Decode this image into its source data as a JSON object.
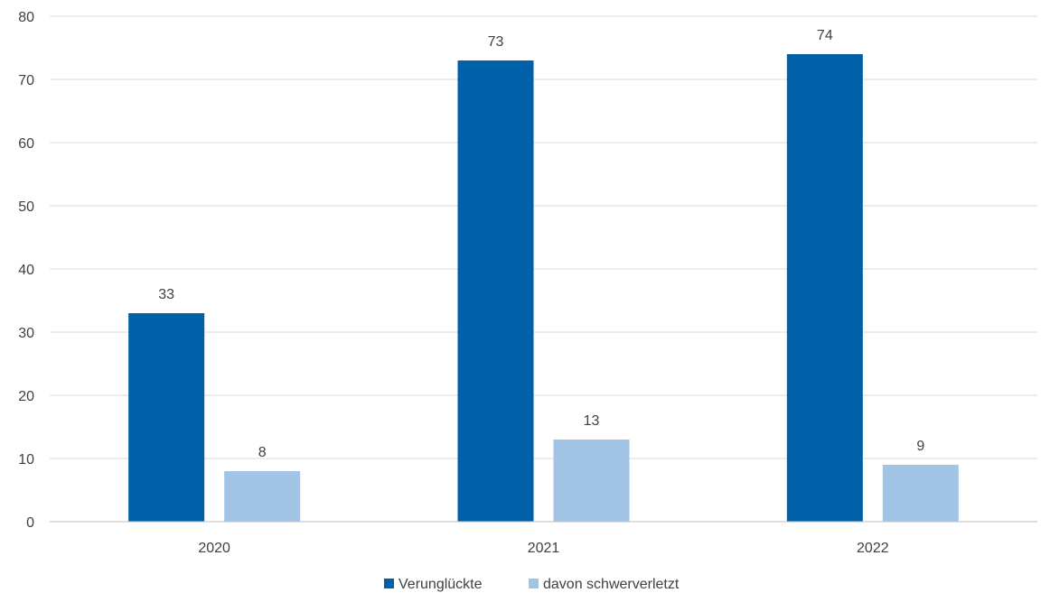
{
  "chart_data": {
    "type": "bar",
    "categories": [
      "2020",
      "2021",
      "2022"
    ],
    "series": [
      {
        "name": "Verunglückte",
        "values": [
          33,
          73,
          74
        ],
        "color": "#0060a8"
      },
      {
        "name": "davon schwerverletzt",
        "values": [
          8,
          13,
          9
        ],
        "color": "#a2c4e6"
      }
    ],
    "ylim": [
      0,
      80
    ],
    "yticks": [
      0,
      10,
      20,
      30,
      40,
      50,
      60,
      70,
      80
    ],
    "grid": true,
    "legend": "bottom-center",
    "data_labels": true
  }
}
